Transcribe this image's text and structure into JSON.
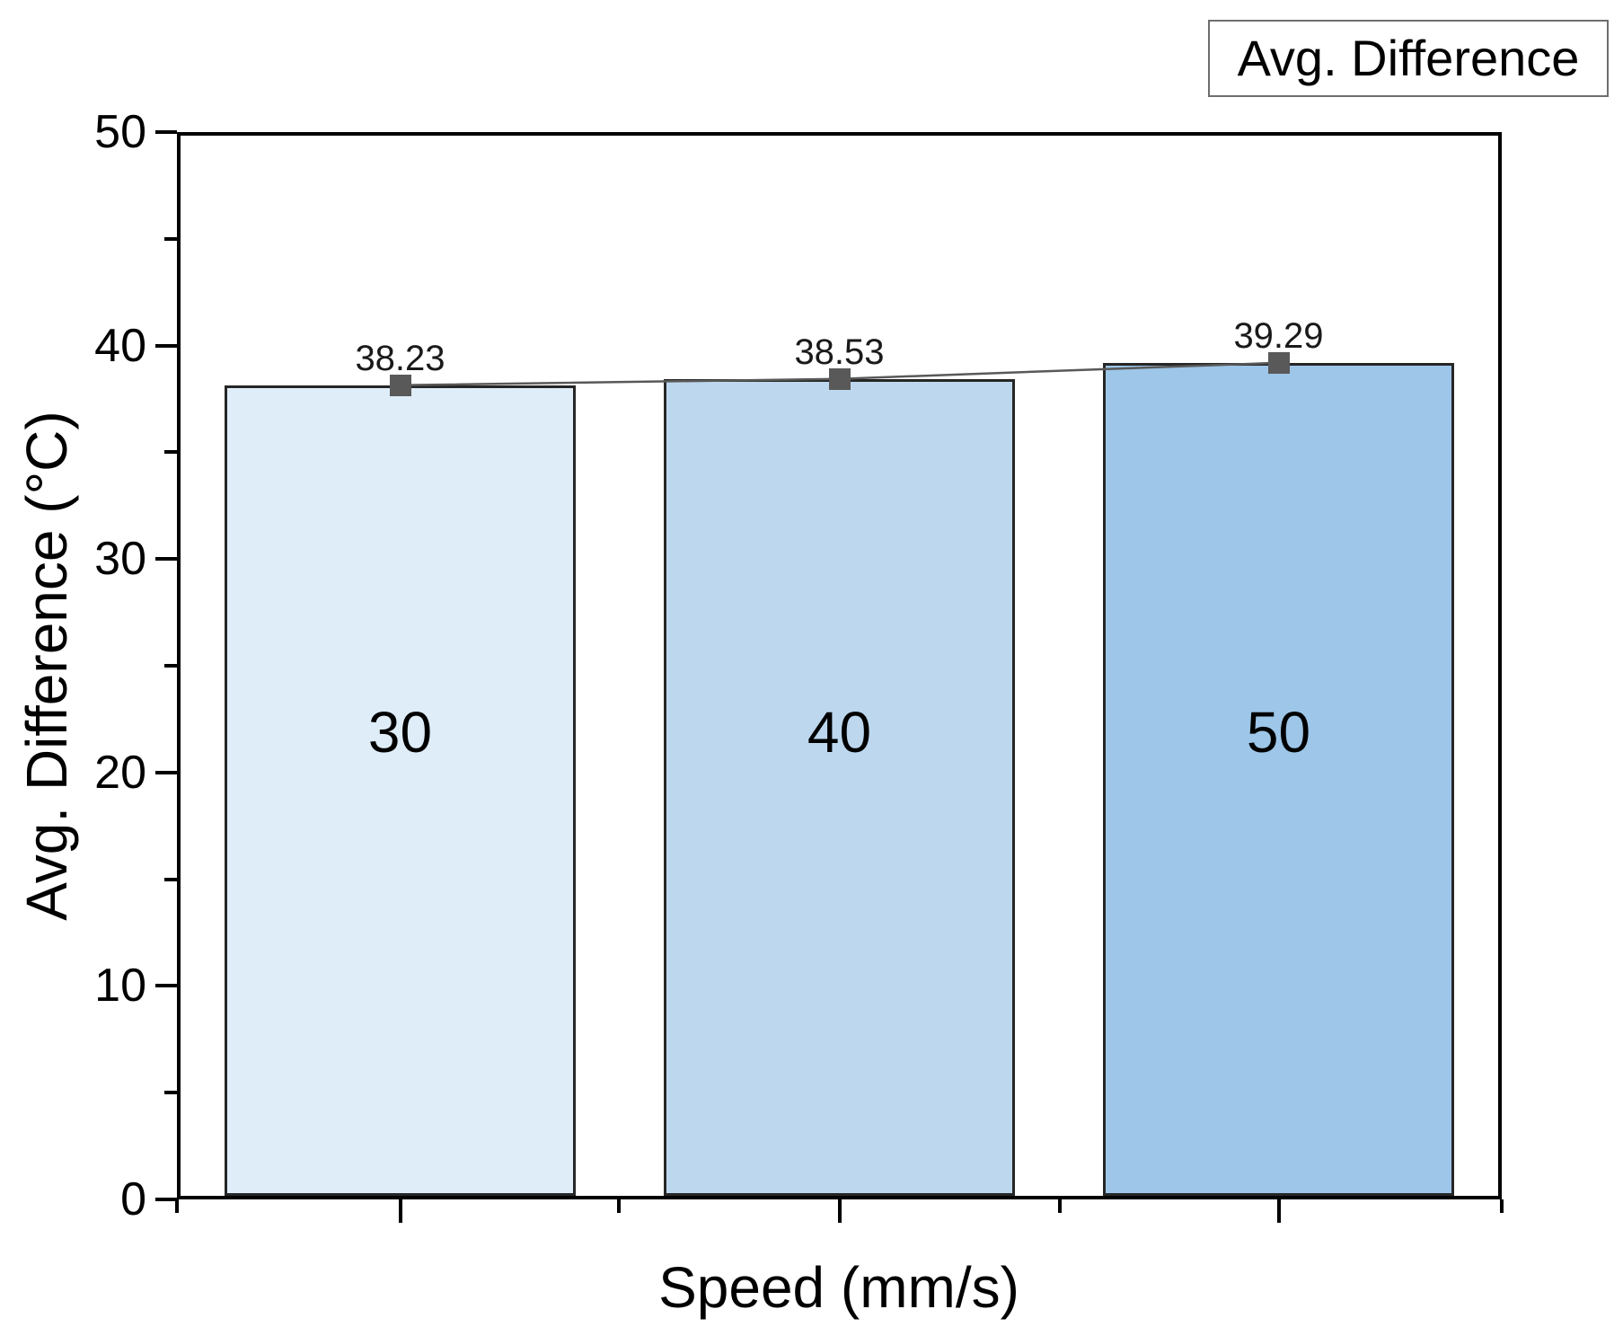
{
  "chart_data": {
    "type": "bar",
    "title": "",
    "xlabel": "Speed (mm/s)",
    "ylabel": "Avg. Difference (°C)",
    "categories": [
      "30",
      "40",
      "50"
    ],
    "series": [
      {
        "name": "Avg. Difference",
        "values": [
          38.23,
          38.53,
          39.29
        ]
      }
    ],
    "point_labels": [
      "38.23",
      "38.53",
      "39.29"
    ],
    "ylim": [
      0,
      50
    ],
    "yticks_major": [
      0,
      10,
      20,
      30,
      40,
      50
    ],
    "ytick_labels": [
      "0",
      "10",
      "20",
      "30",
      "40",
      "50"
    ],
    "yticks_minor": [
      5,
      15,
      25,
      35,
      45
    ],
    "grid": "off",
    "legend": {
      "label": "Avg. Difference",
      "position": "top-right"
    },
    "overlay": "line-with-square-markers",
    "colors": {
      "bar_fills": [
        "#deedf7",
        "#bdd7ee",
        "#9dc6e8"
      ],
      "bar_border": "#262626",
      "marker": "#595959",
      "line": "#595959",
      "axis": "#000000",
      "legend_border": "#6e6e6e"
    }
  }
}
